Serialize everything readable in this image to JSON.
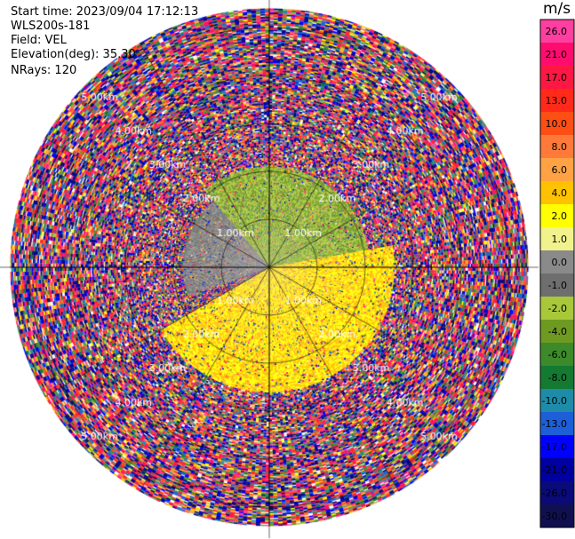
{
  "header": {
    "start_time": "Start time: 2023/09/04 17:12:13",
    "instrument": "WLS200s-181",
    "field": "Field: VEL",
    "elevation": "Elevation(deg): 35.30",
    "nrays": "NRays: 120"
  },
  "colorbar": {
    "title": "m/s",
    "ticks": [
      "26.0",
      "21.0",
      "17.0",
      "13.0",
      "10.0",
      "8.0",
      "6.0",
      "4.0",
      "2.0",
      "1.0",
      "0.0",
      "-1.0",
      "-2.0",
      "-4.0",
      "-6.0",
      "-8.0",
      "-10.0",
      "-13.0",
      "-17.0",
      "-21.0",
      "-26.0",
      "-30.0"
    ],
    "colors": [
      "#ff3fa0",
      "#ff0d6e",
      "#ff1744",
      "#ff2a1a",
      "#ff4e14",
      "#ff7a3a",
      "#ffa244",
      "#ffc200",
      "#ffff00",
      "#f2f28c",
      "#8a8a8a",
      "#6e6e6e",
      "#a8c83a",
      "#6e9a22",
      "#3c8a2a",
      "#147a32",
      "#1e8ca8",
      "#1c5fd8",
      "#0000ff",
      "#0000a0",
      "#0a0a78",
      "#101050"
    ]
  },
  "chart_data": {
    "type": "heatmap",
    "projection": "PPI (plan position indicator)",
    "field": "VEL",
    "units": "m/s",
    "nrays": 120,
    "elevation_deg": 35.3,
    "range_rings_km": [
      1.0,
      2.0,
      3.0,
      4.0,
      5.0
    ],
    "range_ring_labels": [
      "1.00km",
      "2.00km",
      "3.00km",
      "4.00km",
      "5.00km"
    ],
    "radial_lines_deg": [
      0,
      30,
      60,
      90,
      120,
      150,
      180,
      210,
      240,
      270,
      300,
      330
    ],
    "max_range_km": 5.4,
    "color_scale": {
      "min": -30.0,
      "max": 26.0
    },
    "sector_summary": [
      {
        "azimuth_deg": [
          320,
          80
        ],
        "range_km": [
          0.0,
          2.1
        ],
        "dominant_velocity_ms": [
          -4.0,
          -2.0
        ],
        "note": "olive/green inner region"
      },
      {
        "azimuth_deg": [
          80,
          240
        ],
        "range_km": [
          0.0,
          2.6
        ],
        "dominant_velocity_ms": [
          2.0,
          4.0
        ],
        "note": "yellow inner region"
      },
      {
        "azimuth_deg": [
          250,
          320
        ],
        "range_km": [
          0.0,
          1.8
        ],
        "dominant_velocity_ms": [
          -1.0,
          0.0
        ],
        "note": "grey inner region"
      },
      {
        "azimuth_deg": [
          0,
          360
        ],
        "range_km": [
          2.2,
          5.4
        ],
        "dominant_velocity_ms": [
          -30.0,
          26.0
        ],
        "note": "noisy aliased outer region"
      }
    ]
  }
}
